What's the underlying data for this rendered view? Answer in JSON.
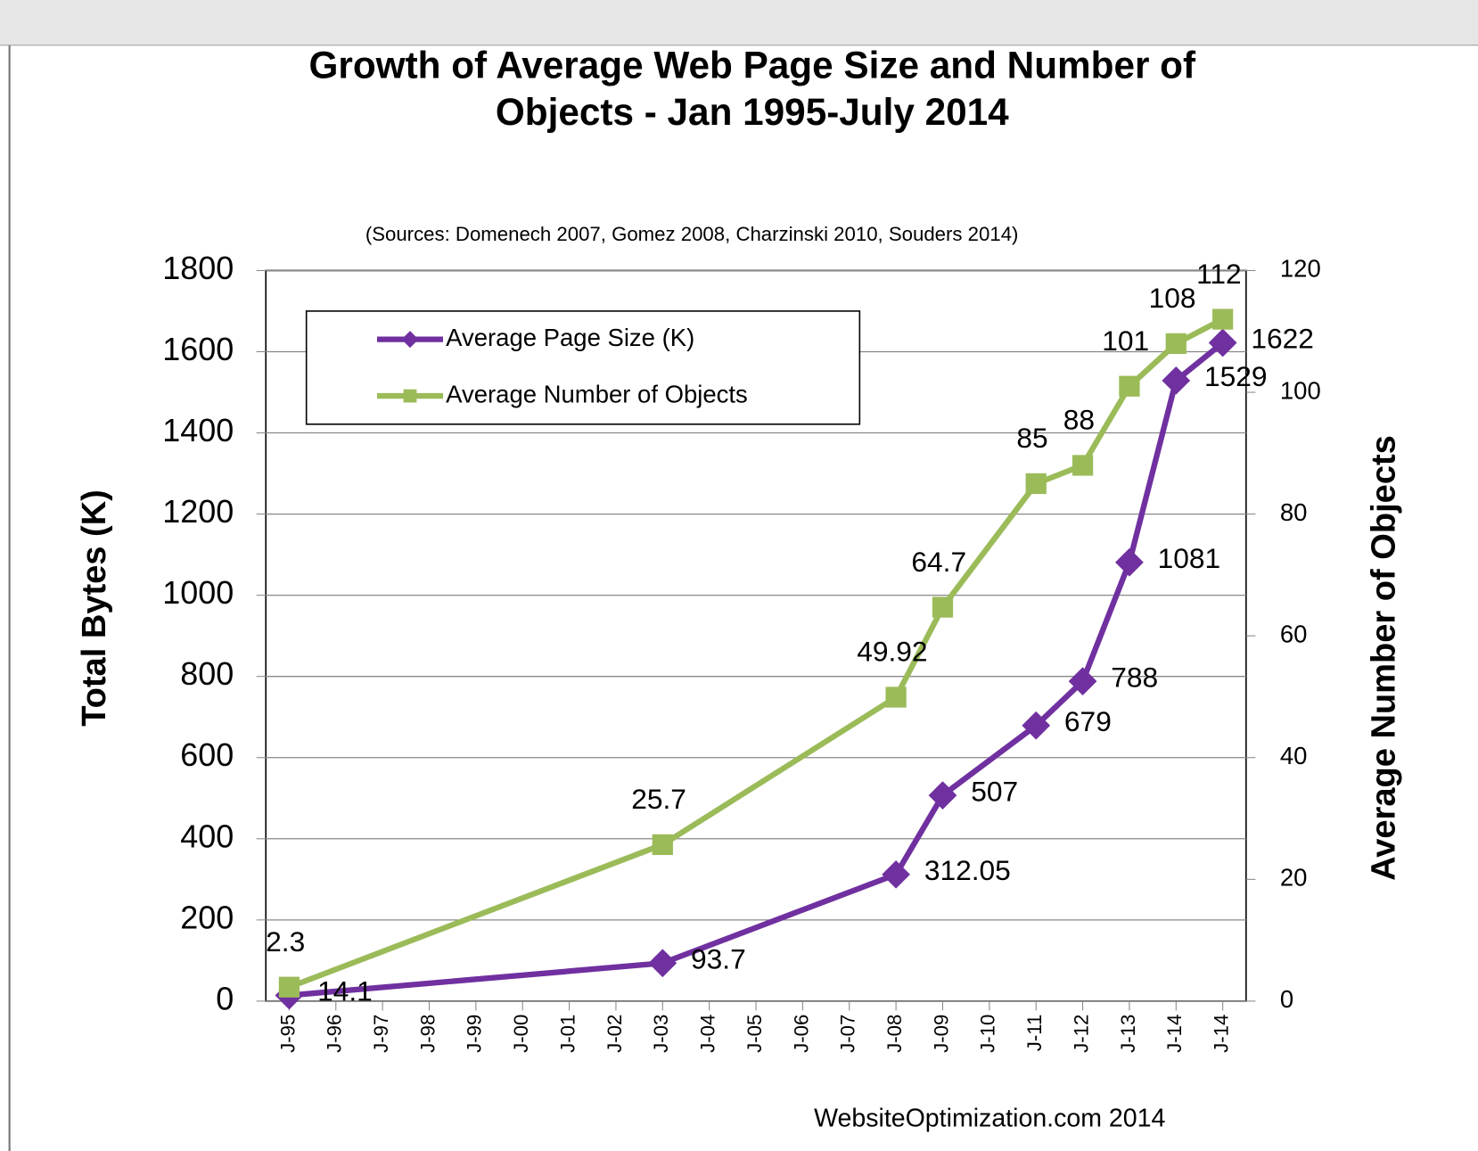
{
  "chart_data": {
    "type": "line",
    "title": [
      "Growth of Average Web Page Size and Number of",
      "Objects - Jan 1995-July 2014"
    ],
    "subtitle": "(Sources: Domenech 2007, Gomez 2008, Charzinski 2010, Souders 2014)",
    "y_label": "Total Bytes (K)",
    "y2_label": "Average Number of Objects",
    "footer": "WebsiteOptimization.com 2014",
    "categories": [
      "J-95",
      "J-96",
      "J-97",
      "J-98",
      "J-99",
      "J-00",
      "J-01",
      "J-02",
      "J-03",
      "J-04",
      "J-05",
      "J-06",
      "J-07",
      "J-08",
      "J-09",
      "J-10",
      "J-11",
      "J-12",
      "J-13",
      "J-14",
      "J-14"
    ],
    "series": [
      {
        "name": "Average Page Size (K)",
        "color": "#7030a0",
        "marker": "diamond",
        "values": [
          14.1,
          null,
          null,
          null,
          null,
          null,
          null,
          null,
          93.7,
          null,
          null,
          null,
          null,
          312.05,
          507,
          null,
          679,
          788,
          1081,
          1529,
          1622
        ]
      },
      {
        "name": "Average Number of Objects",
        "color": "#9bbb59",
        "marker": "square",
        "axis": "y2",
        "values": [
          2.3,
          null,
          null,
          null,
          null,
          null,
          null,
          null,
          25.7,
          null,
          null,
          null,
          null,
          49.92,
          64.7,
          null,
          85,
          88,
          101,
          108,
          112
        ]
      }
    ],
    "ylim": [
      0,
      1800
    ],
    "yticks": [
      0,
      200,
      400,
      600,
      800,
      1000,
      1200,
      1400,
      1600,
      1800
    ],
    "y2lim": [
      0,
      120
    ],
    "y2ticks": [
      0,
      20,
      40,
      60,
      80,
      100,
      120
    ],
    "grid": true,
    "legend": "top-left"
  }
}
